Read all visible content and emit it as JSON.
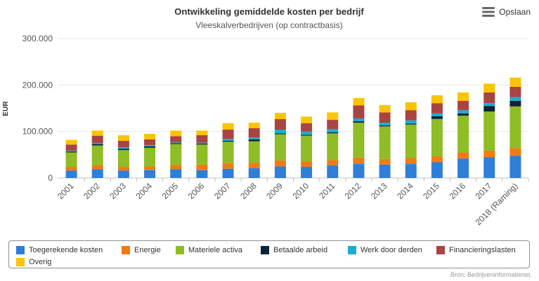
{
  "header": {
    "menu_label": "Opslaan"
  },
  "chart_data": {
    "type": "bar",
    "stacked": true,
    "title": "Ontwikkeling gemiddelde kosten per bedrijf",
    "subtitle": "Vleeskalverbedrijven (op contractbasis)",
    "ylabel": "EUR",
    "xlabel": "",
    "ylim": [
      0,
      300000
    ],
    "yticks": [
      0,
      100000,
      200000,
      300000
    ],
    "ytick_labels": [
      "0",
      "100.000",
      "200.000",
      "300.000"
    ],
    "grid": true,
    "legend_position": "bottom",
    "categories": [
      "2001",
      "2002",
      "2003",
      "2004",
      "2005",
      "2006",
      "2007",
      "2008",
      "2009",
      "2010",
      "2011",
      "2012",
      "2013",
      "2014",
      "2015",
      "2016",
      "2017",
      "2018 (Raming)"
    ],
    "series": [
      {
        "name": "Toegerekende kosten",
        "color": "#2f7ed8",
        "values": [
          16000,
          19000,
          16000,
          17000,
          19000,
          17000,
          20000,
          21000,
          25000,
          24000,
          27000,
          30000,
          29000,
          30000,
          34000,
          42000,
          45000,
          48000
        ]
      },
      {
        "name": "Energie",
        "color": "#f07b14",
        "values": [
          8000,
          9000,
          8000,
          8000,
          9000,
          12000,
          12000,
          12000,
          13000,
          12000,
          12000,
          14000,
          12000,
          13000,
          13000,
          13000,
          14000,
          16000
        ]
      },
      {
        "name": "Materiele activa",
        "color": "#8ebd26",
        "values": [
          31000,
          42000,
          36000,
          40000,
          45000,
          43000,
          46000,
          46000,
          56000,
          55000,
          57000,
          75000,
          70000,
          72000,
          80000,
          79000,
          84000,
          90000
        ]
      },
      {
        "name": "Betaalde arbeid",
        "color": "#0d233a",
        "values": [
          2000,
          3000,
          3000,
          3000,
          2000,
          2000,
          2000,
          4000,
          2000,
          2000,
          2000,
          3000,
          2000,
          2000,
          6000,
          5000,
          12000,
          12000
        ]
      },
      {
        "name": "Werk door derden",
        "color": "#1aadce",
        "values": [
          2000,
          2000,
          3000,
          3000,
          2000,
          2000,
          4000,
          4000,
          8000,
          7000,
          7000,
          6000,
          6000,
          7000,
          6000,
          7000,
          6000,
          8000
        ]
      },
      {
        "name": "Financieringslasten",
        "color": "#a94442",
        "values": [
          13000,
          16000,
          14000,
          12000,
          13000,
          16000,
          20000,
          20000,
          23000,
          18000,
          20000,
          28000,
          22000,
          22000,
          22000,
          20000,
          23000,
          22000
        ]
      },
      {
        "name": "Overig",
        "color": "#fbc400",
        "values": [
          10000,
          11000,
          12000,
          12000,
          12000,
          10000,
          14000,
          12000,
          13000,
          14000,
          16000,
          16000,
          16000,
          17000,
          17000,
          18000,
          19000,
          20000
        ]
      }
    ]
  },
  "credits": "Bron: Bedrijveninformatienet."
}
